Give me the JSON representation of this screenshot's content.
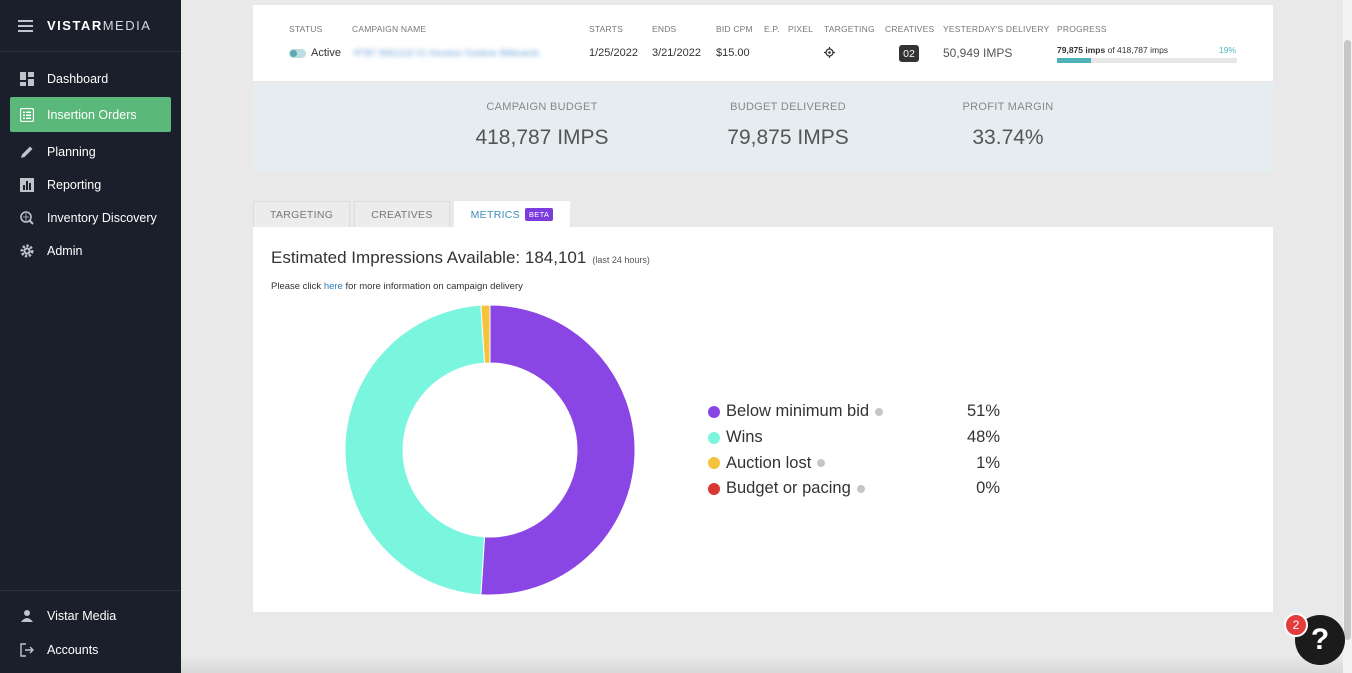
{
  "app": {
    "brand_bold": "VISTAR",
    "brand_thin": "MEDIA"
  },
  "sidebar": {
    "items": [
      {
        "label": "Dashboard",
        "icon": "dashboard-icon"
      },
      {
        "label": "Insertion Orders",
        "icon": "list-icon"
      },
      {
        "label": "Planning",
        "icon": "pencil-icon"
      },
      {
        "label": "Reporting",
        "icon": "chart-icon"
      },
      {
        "label": "Inventory Discovery",
        "icon": "search-globe-icon"
      },
      {
        "label": "Admin",
        "icon": "gear-icon"
      }
    ],
    "footer": [
      {
        "label": "Vistar Media",
        "icon": "user-icon"
      },
      {
        "label": "Accounts",
        "icon": "logout-icon"
      }
    ]
  },
  "campaign": {
    "headers": {
      "status": "STATUS",
      "name": "CAMPAIGN NAME",
      "starts": "STARTS",
      "ends": "ENDS",
      "bid_cpm": "BID CPM",
      "ep": "E.P.",
      "pixel": "PIXEL",
      "targeting": "TARGETING",
      "creatives": "CREATIVES",
      "yesterday": "YESTERDAY'S DELIVERY",
      "progress": "PROGRESS"
    },
    "status": "Active",
    "name": "RTB7 8061102 01 Houston Outdoor Billboards",
    "starts": "1/25/2022",
    "ends": "3/21/2022",
    "bid_cpm": "$15.00",
    "creatives": "02",
    "yesterday_delivery": "50,949 IMPS",
    "progress_bold": "79,875 imps",
    "progress_rest": "of 418,787 imps",
    "progress_pct": "19%",
    "progress_fraction": 0.19
  },
  "budget": {
    "campaign_budget_label": "CAMPAIGN BUDGET",
    "campaign_budget_value": "418,787 IMPS",
    "delivered_label": "BUDGET DELIVERED",
    "delivered_value": "79,875 IMPS",
    "margin_label": "PROFIT MARGIN",
    "margin_value": "33.74%"
  },
  "tabs": [
    {
      "label": "TARGETING"
    },
    {
      "label": "CREATIVES"
    },
    {
      "label": "METRICS",
      "badge": "BETA"
    }
  ],
  "metrics": {
    "title": "Estimated Impressions Available: 184,101",
    "subtitle": "(last 24 hours)",
    "info_prefix": "Please click ",
    "info_link": "here",
    "info_suffix": " for more information on campaign delivery"
  },
  "chart_data": {
    "type": "pie",
    "title": "",
    "categories": [
      "Below minimum bid",
      "Wins",
      "Auction lost",
      "Budget or pacing"
    ],
    "values": [
      51,
      48,
      1,
      0
    ],
    "labels": [
      "51%",
      "48%",
      "1%",
      "0%"
    ],
    "colors": [
      "#8a46e5",
      "#7af5de",
      "#f5c33b",
      "#d93636"
    ],
    "legend": "right"
  },
  "help": {
    "count": "2",
    "glyph": "?"
  }
}
